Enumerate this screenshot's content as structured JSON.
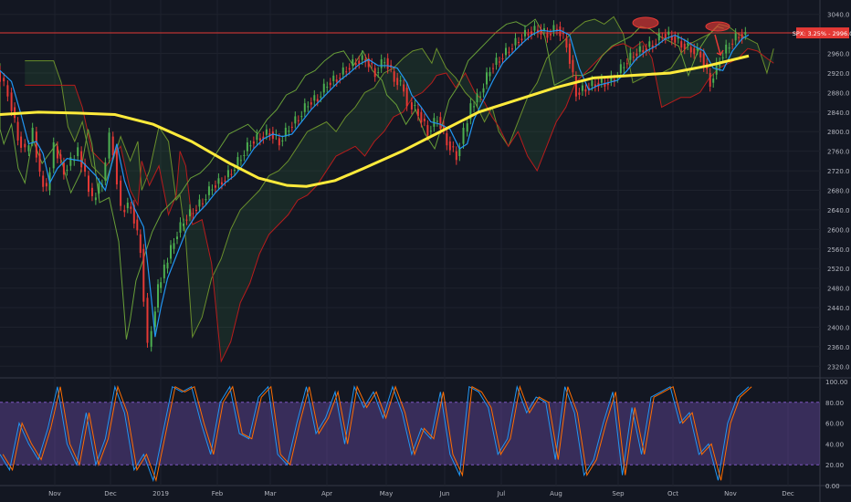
{
  "chart_data": {
    "type": "line",
    "main_panel": {
      "description_type": "candlestick with indicators",
      "ylim": [
        2300,
        3060
      ],
      "y_ticks": [
        2320,
        2360,
        2400,
        2440,
        2480,
        2520,
        2560,
        2600,
        2640,
        2680,
        2720,
        2760,
        2800,
        2840,
        2880,
        2920,
        2960,
        3040
      ],
      "y_tick_labels": [
        "2320.0",
        "2360.0",
        "2400.0",
        "2440.0",
        "2480.0",
        "2520.0",
        "2560.0",
        "2600.0",
        "2640.0",
        "2680.0",
        "2720.0",
        "2760.0",
        "2800.0",
        "2840.0",
        "2880.0",
        "2920.0",
        "2960.0",
        "3040.0"
      ],
      "price_label": "SPX: 3.25% - 2996.0",
      "price_line": 3002,
      "close_series": {
        "name": "",
        "x": [
          0,
          12,
          22,
          30,
          38,
          45,
          52,
          60,
          70,
          85,
          100,
          110,
          118,
          122,
          130,
          140,
          150,
          158,
          162,
          168,
          175,
          185,
          195,
          205,
          215,
          225,
          235,
          245,
          255,
          265,
          275,
          285,
          295,
          305,
          315,
          325,
          335,
          345,
          355,
          365,
          375,
          385,
          395,
          405,
          415,
          425,
          430,
          440,
          450,
          460,
          470,
          480,
          488,
          495,
          505,
          515,
          525,
          535,
          545,
          555,
          565,
          575,
          585,
          595,
          605,
          615,
          625,
          635,
          645,
          655,
          665,
          675,
          685,
          695,
          705,
          715,
          725,
          735,
          745,
          755,
          765,
          775,
          782
        ],
        "values": [
          2925,
          2880,
          2790,
          2760,
          2800,
          2710,
          2680,
          2770,
          2720,
          2760,
          2660,
          2700,
          2790,
          2760,
          2640,
          2650,
          2560,
          2360,
          2400,
          2480,
          2520,
          2580,
          2620,
          2640,
          2660,
          2690,
          2700,
          2720,
          2750,
          2780,
          2790,
          2800,
          2780,
          2810,
          2830,
          2860,
          2870,
          2900,
          2910,
          2930,
          2945,
          2950,
          2920,
          2950,
          2910,
          2890,
          2860,
          2840,
          2800,
          2830,
          2780,
          2750,
          2800,
          2850,
          2880,
          2930,
          2950,
          2970,
          2990,
          3005,
          3010,
          3000,
          3015,
          2980,
          2880,
          2890,
          2900,
          2900,
          2910,
          2940,
          2960,
          2970,
          2980,
          3000,
          2995,
          2980,
          2970,
          2960,
          2900,
          2950,
          2980,
          3000,
          2996
        ]
      },
      "ma200": {
        "name": "",
        "x": [
          0,
          40,
          80,
          120,
          160,
          200,
          240,
          270,
          300,
          320,
          350,
          380,
          420,
          460,
          500,
          540,
          580,
          620,
          660,
          700,
          740,
          782
        ],
        "values": [
          2835,
          2840,
          2838,
          2835,
          2815,
          2780,
          2735,
          2705,
          2690,
          2688,
          2700,
          2725,
          2760,
          2800,
          2840,
          2865,
          2890,
          2910,
          2915,
          2920,
          2935,
          2955
        ]
      },
      "x_tick_labels": [
        "Nov",
        "Dec",
        "2019",
        "Feb",
        "Mar",
        "Apr",
        "May",
        "Jun",
        "Jul",
        "Aug",
        "Sep",
        "Oct",
        "Nov",
        "Dec"
      ]
    },
    "stochastic_panel": {
      "ylim": [
        0,
        100
      ],
      "y_tick_labels": [
        "100.00",
        "80.00",
        "60.00",
        "40.00",
        "20.00",
        "0.00"
      ],
      "band": [
        20,
        80
      ],
      "k_series": {
        "name": "",
        "x": [
          0,
          10,
          20,
          30,
          40,
          50,
          60,
          70,
          80,
          90,
          100,
          110,
          120,
          130,
          140,
          150,
          160,
          170,
          180,
          190,
          200,
          210,
          220,
          230,
          240,
          250,
          260,
          270,
          280,
          290,
          300,
          310,
          320,
          330,
          340,
          350,
          360,
          370,
          380,
          390,
          400,
          410,
          420,
          430,
          440,
          450,
          460,
          470,
          480,
          490,
          500,
          510,
          520,
          530,
          540,
          550,
          560,
          570,
          580,
          590,
          600,
          610,
          620,
          630,
          640,
          650,
          660,
          670,
          680,
          690,
          700,
          710,
          720,
          730,
          740,
          750,
          760,
          770,
          782
        ],
        "values": [
          30,
          15,
          60,
          40,
          25,
          55,
          95,
          40,
          20,
          70,
          20,
          45,
          95,
          70,
          15,
          30,
          5,
          50,
          95,
          90,
          95,
          60,
          30,
          80,
          95,
          50,
          45,
          85,
          95,
          30,
          20,
          60,
          95,
          50,
          65,
          90,
          40,
          95,
          75,
          90,
          65,
          95,
          70,
          30,
          55,
          45,
          90,
          30,
          10,
          95,
          90,
          75,
          30,
          45,
          95,
          70,
          85,
          80,
          25,
          95,
          70,
          10,
          25,
          60,
          90,
          10,
          75,
          30,
          85,
          90,
          95,
          60,
          70,
          30,
          40,
          5,
          60,
          85,
          95
        ]
      }
    }
  }
}
